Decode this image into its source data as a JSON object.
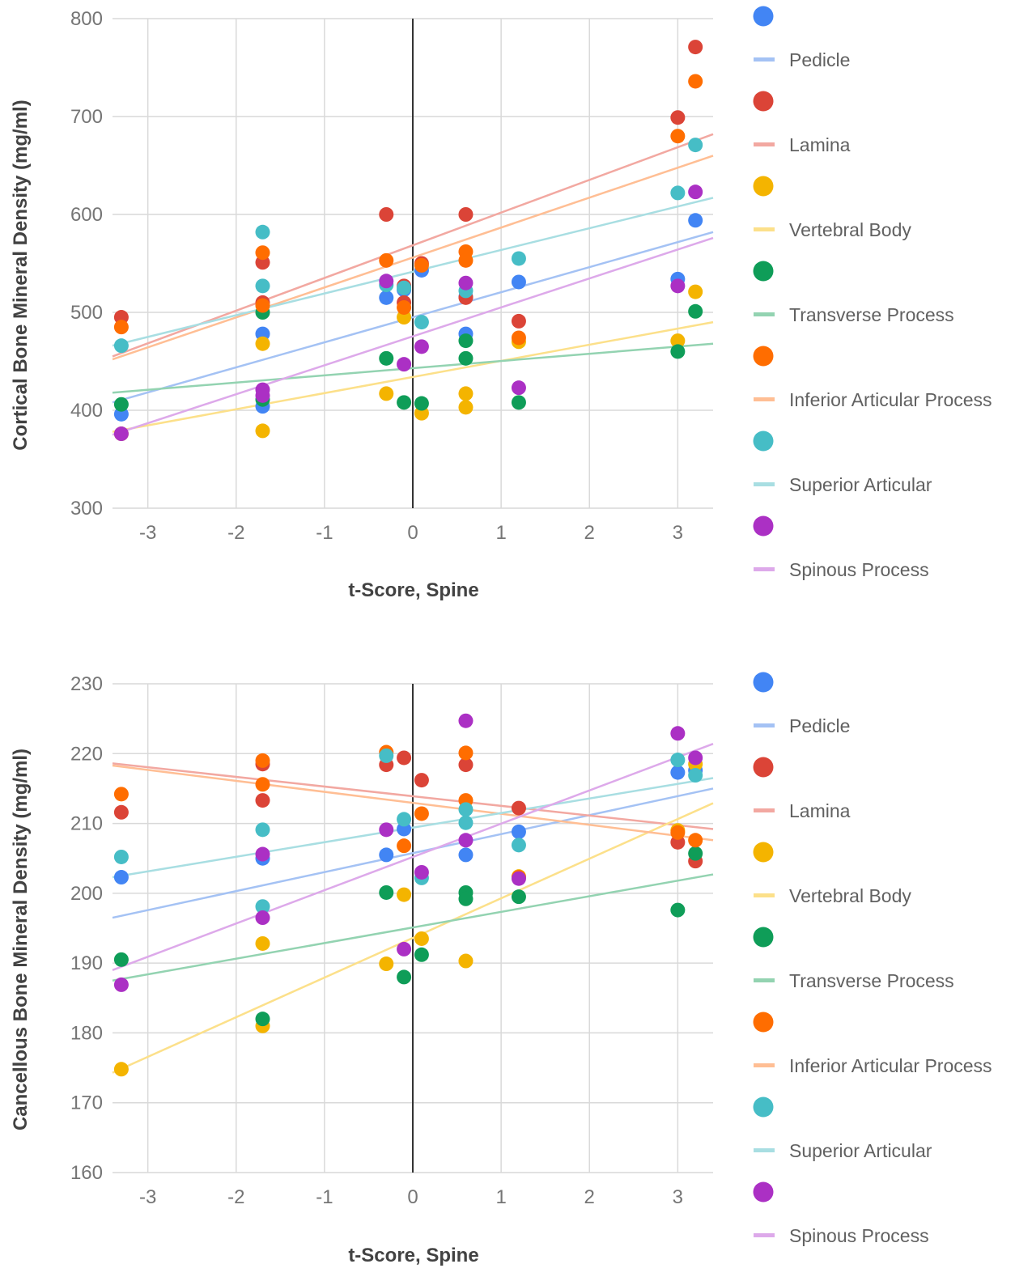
{
  "chart_data": [
    {
      "type": "scatter",
      "xlabel": "t-Score, Spine",
      "ylabel": "Cortical Bone Mineral Density (mg/ml)",
      "xlim": [
        -3.4,
        3.4
      ],
      "ylim": [
        300,
        800
      ],
      "xticks": [
        -3,
        -2,
        -1,
        0,
        1,
        2,
        3
      ],
      "yticks": [
        300,
        400,
        500,
        600,
        700,
        800
      ],
      "grid": true,
      "legend_position": "right",
      "series": [
        {
          "name": "Pedicle",
          "color": "#4285F4",
          "trend_color": "#A4C2F4",
          "x": [
            -3.3,
            -1.7,
            -1.7,
            -0.3,
            -0.1,
            0.1,
            0.6,
            0.6,
            1.2,
            3.0,
            3.2
          ],
          "y": [
            396,
            404,
            478,
            515,
            523,
            543,
            478,
            516,
            531,
            534,
            594
          ],
          "trend": [
            [
              -3.4,
              408
            ],
            [
              3.4,
              582
            ]
          ]
        },
        {
          "name": "Lamina",
          "color": "#DB4437",
          "trend_color": "#F2A8A1",
          "x": [
            -3.3,
            -1.7,
            -1.7,
            -0.3,
            -0.1,
            -0.1,
            0.1,
            0.6,
            0.6,
            1.2,
            3.0,
            3.2
          ],
          "y": [
            495,
            510,
            551,
            600,
            527,
            510,
            550,
            600,
            515,
            491,
            699,
            771
          ],
          "trend": [
            [
              -3.4,
              455
            ],
            [
              3.4,
              682
            ]
          ]
        },
        {
          "name": "Vertebral Body",
          "color": "#F4B400",
          "trend_color": "#FCE08A",
          "x": [
            -3.3,
            -1.7,
            -1.7,
            -0.3,
            -0.1,
            0.1,
            0.6,
            0.6,
            1.2,
            3.0,
            3.2
          ],
          "y": [
            376,
            379,
            468,
            417,
            495,
            397,
            417,
            403,
            470,
            471,
            521
          ],
          "trend": [
            [
              -3.4,
              378
            ],
            [
              3.4,
              490
            ]
          ]
        },
        {
          "name": "Transverse Process",
          "color": "#0F9D58",
          "trend_color": "#93D3B1",
          "x": [
            -3.3,
            -1.7,
            -1.7,
            -0.3,
            -0.1,
            0.1,
            0.6,
            0.6,
            1.2,
            3.0,
            3.2
          ],
          "y": [
            406,
            411,
            500,
            453,
            408,
            407,
            471,
            453,
            408,
            460,
            501
          ],
          "trend": [
            [
              -3.4,
              418
            ],
            [
              3.4,
              468
            ]
          ]
        },
        {
          "name": "Inferior Articular Process",
          "color": "#FF6D00",
          "trend_color": "#FFBE94",
          "x": [
            -3.3,
            -1.7,
            -1.7,
            -0.3,
            -0.1,
            0.1,
            0.6,
            0.6,
            1.2,
            3.0,
            3.2
          ],
          "y": [
            485,
            561,
            507,
            553,
            505,
            548,
            562,
            553,
            474,
            680,
            736
          ],
          "trend": [
            [
              -3.4,
              452
            ],
            [
              3.4,
              660
            ]
          ]
        },
        {
          "name": "Superior Articular",
          "color": "#46BDC6",
          "trend_color": "#A8DEE2",
          "x": [
            -3.3,
            -1.7,
            -1.7,
            -0.3,
            -0.1,
            0.1,
            0.6,
            1.2,
            3.0,
            3.2
          ],
          "y": [
            466,
            582,
            527,
            528,
            525,
            490,
            522,
            555,
            622,
            671
          ],
          "trend": [
            [
              -3.4,
              466
            ],
            [
              3.4,
              617
            ]
          ]
        },
        {
          "name": "Spinous Process",
          "color": "#AB30C4",
          "trend_color": "#DDA9EA",
          "x": [
            -3.3,
            -1.7,
            -1.7,
            -0.3,
            -0.1,
            0.1,
            0.6,
            1.2,
            3.0,
            3.2
          ],
          "y": [
            376,
            421,
            415,
            532,
            447,
            465,
            530,
            423,
            527,
            623
          ],
          "trend": [
            [
              -3.4,
              375
            ],
            [
              3.4,
              576
            ]
          ]
        }
      ]
    },
    {
      "type": "scatter",
      "xlabel": "t-Score, Spine",
      "ylabel": "Cancellous Bone Mineral Density (mg/ml)",
      "xlim": [
        -3.4,
        3.4
      ],
      "ylim": [
        160,
        230
      ],
      "xticks": [
        -3,
        -2,
        -1,
        0,
        1,
        2,
        3
      ],
      "yticks": [
        160,
        170,
        180,
        190,
        200,
        210,
        220,
        230
      ],
      "grid": true,
      "legend_position": "right",
      "series": [
        {
          "name": "Pedicle",
          "color": "#4285F4",
          "trend_color": "#A4C2F4",
          "x": [
            -3.3,
            -1.7,
            -0.3,
            -0.1,
            0.6,
            1.2,
            3.0,
            3.2
          ],
          "y": [
            202.3,
            205.0,
            205.5,
            209.2,
            205.5,
            208.8,
            217.3,
            217.6
          ],
          "trend": [
            [
              -3.4,
              196.5
            ],
            [
              3.4,
              215.0
            ]
          ]
        },
        {
          "name": "Lamina",
          "color": "#DB4437",
          "trend_color": "#F2A8A1",
          "x": [
            -3.3,
            -1.7,
            -1.7,
            -0.3,
            -0.1,
            0.1,
            0.6,
            1.2,
            3.0,
            3.2
          ],
          "y": [
            211.6,
            213.3,
            218.5,
            218.4,
            219.4,
            216.2,
            218.4,
            212.2,
            207.3,
            204.6
          ],
          "trend": [
            [
              -3.4,
              218.6
            ],
            [
              3.4,
              209.2
            ]
          ]
        },
        {
          "name": "Vertebral Body",
          "color": "#F4B400",
          "trend_color": "#FCE08A",
          "x": [
            -3.3,
            -1.7,
            -1.7,
            -0.3,
            -0.1,
            0.1,
            0.6,
            1.2,
            3.0,
            3.2
          ],
          "y": [
            174.8,
            181.0,
            192.8,
            189.9,
            199.8,
            193.5,
            190.3,
            202.4,
            209.0,
            218.5
          ],
          "trend": [
            [
              -3.4,
              174.3
            ],
            [
              3.4,
              212.9
            ]
          ]
        },
        {
          "name": "Transverse Process",
          "color": "#0F9D58",
          "trend_color": "#93D3B1",
          "x": [
            -3.3,
            -1.7,
            -0.3,
            -0.1,
            0.1,
            0.6,
            0.6,
            1.2,
            3.0,
            3.2
          ],
          "y": [
            190.5,
            182.0,
            200.1,
            188.0,
            191.2,
            200.1,
            199.2,
            199.5,
            197.6,
            205.7
          ],
          "trend": [
            [
              -3.4,
              187.5
            ],
            [
              3.4,
              202.7
            ]
          ]
        },
        {
          "name": "Inferior Articular Process",
          "color": "#FF6D00",
          "trend_color": "#FFBE94",
          "x": [
            -3.3,
            -1.7,
            -1.7,
            -0.3,
            -0.1,
            0.1,
            0.6,
            0.6,
            1.2,
            3.0,
            3.2
          ],
          "y": [
            214.2,
            219.0,
            215.6,
            220.2,
            206.8,
            211.4,
            220.1,
            213.3,
            202.3,
            208.7,
            207.6
          ],
          "trend": [
            [
              -3.4,
              218.3
            ],
            [
              3.4,
              207.6
            ]
          ]
        },
        {
          "name": "Superior Articular",
          "color": "#46BDC6",
          "trend_color": "#A8DEE2",
          "x": [
            -3.3,
            -1.7,
            -1.7,
            -0.3,
            -0.1,
            0.1,
            0.6,
            0.6,
            1.2,
            3.0,
            3.2
          ],
          "y": [
            205.2,
            209.1,
            198.1,
            219.7,
            210.6,
            202.2,
            212.0,
            210.1,
            206.9,
            219.1,
            216.9
          ],
          "trend": [
            [
              -3.4,
              202.3
            ],
            [
              3.4,
              216.5
            ]
          ]
        },
        {
          "name": "Spinous Process",
          "color": "#AB30C4",
          "trend_color": "#DDA9EA",
          "x": [
            -3.3,
            -1.7,
            -1.7,
            -0.3,
            -0.1,
            0.1,
            0.6,
            0.6,
            1.2,
            3.0,
            3.2
          ],
          "y": [
            186.9,
            205.6,
            196.5,
            209.1,
            192.0,
            203.0,
            207.6,
            224.7,
            202.1,
            222.9,
            219.4
          ],
          "trend": [
            [
              -3.4,
              189.0
            ],
            [
              3.4,
              221.4
            ]
          ]
        }
      ]
    }
  ]
}
